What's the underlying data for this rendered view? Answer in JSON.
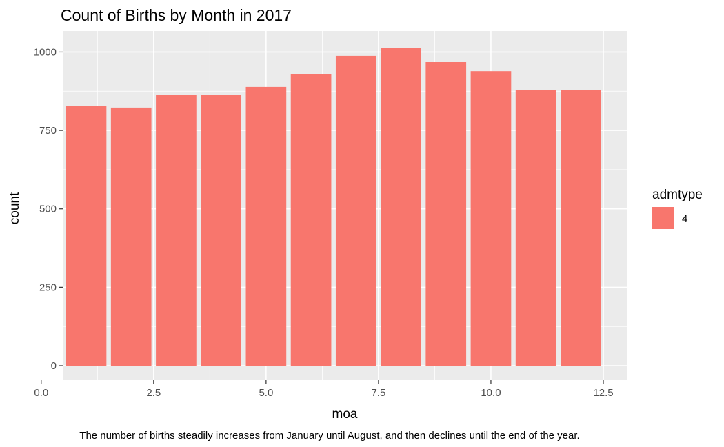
{
  "chart_data": {
    "type": "bar",
    "title": "Count of Births by Month in 2017",
    "xlabel": "moa",
    "ylabel": "count",
    "caption": "The number of births steadily increases from January until August, and then declines until the end of the year.",
    "x": [
      1,
      2,
      3,
      4,
      5,
      6,
      7,
      8,
      9,
      10,
      11,
      12
    ],
    "series": [
      {
        "name": "4",
        "values": [
          828,
          823,
          863,
          863,
          889,
          930,
          988,
          1012,
          968,
          939,
          880,
          880
        ]
      }
    ],
    "xlim": [
      0,
      12.5
    ],
    "ylim": [
      0,
      1012
    ],
    "x_ticks": [
      "0.0",
      "2.5",
      "5.0",
      "7.5",
      "10.0",
      "12.5"
    ],
    "y_ticks": [
      "0",
      "250",
      "500",
      "750",
      "1000"
    ],
    "grid": true,
    "legend": {
      "title": "admtype",
      "position": "right"
    },
    "colors": {
      "bar": "#F8766D",
      "panel": "#EBEBEB",
      "grid": "#FFFFFF"
    }
  }
}
